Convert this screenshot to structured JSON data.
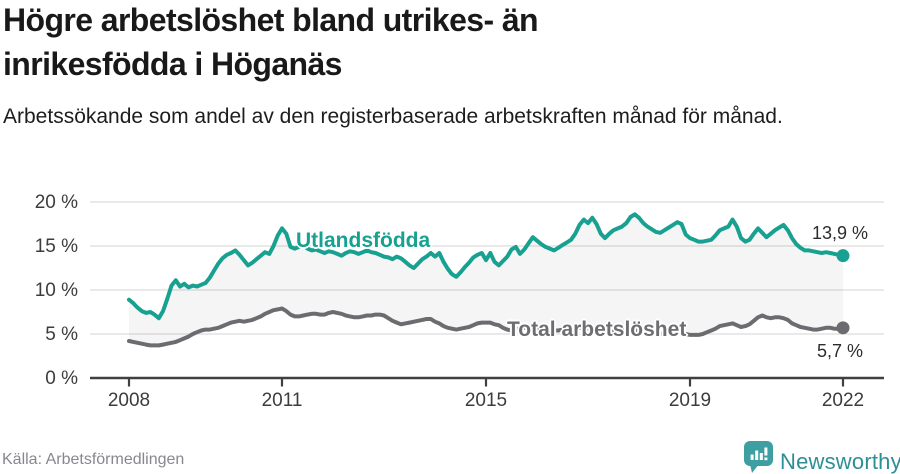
{
  "header": {
    "title": "Högre arbetslöshet bland utrikes- än inrikesfödda i Höganäs",
    "subtitle": "Arbetssökande som andel av den registerbaserade arbetskraften månad för månad."
  },
  "footer": {
    "source": "Källa: Arbetsförmedlingen",
    "brand": "Newsworthy"
  },
  "colors": {
    "series_foreign": "#18a191",
    "series_total": "#6c6c70",
    "grid": "#dcdcdc",
    "axis": "#404040",
    "band": "rgba(140,140,140,0.085)",
    "brand_icon": "#3d9fa2",
    "brand_text": "#2d8f96"
  },
  "chart_data": {
    "type": "line",
    "unit": "%",
    "frequency": "monthly",
    "x_start": "2008-01",
    "x_end": "2022-01",
    "ylim": [
      0,
      20
    ],
    "grid": "horizontal",
    "legend_position": "inline-labels",
    "yticks": [
      "0 %",
      "5 %",
      "10 %",
      "15 %",
      "20 %"
    ],
    "xticks": [
      "2008",
      "2011",
      "2015",
      "2019",
      "2022"
    ],
    "xtick_years": [
      2008,
      2011,
      2015,
      2019,
      2022
    ],
    "series": [
      {
        "name": "Utlandsfödda",
        "end_label": "13,9 %",
        "end_value": 13.9,
        "color": "#18a191",
        "values": [
          8.9,
          8.5,
          8.0,
          7.6,
          7.4,
          7.5,
          7.2,
          6.8,
          7.6,
          9.0,
          10.5,
          11.1,
          10.4,
          10.7,
          10.3,
          10.5,
          10.4,
          10.6,
          10.8,
          11.4,
          12.2,
          13.0,
          13.6,
          14.0,
          14.2,
          14.5,
          14.0,
          13.4,
          12.8,
          13.1,
          13.5,
          13.9,
          14.3,
          14.1,
          15.0,
          16.2,
          17.0,
          16.4,
          14.9,
          14.7,
          14.9,
          15.1,
          14.7,
          14.5,
          14.6,
          14.4,
          14.2,
          14.4,
          14.3,
          14.1,
          13.9,
          14.2,
          14.4,
          14.3,
          14.1,
          14.3,
          14.5,
          14.3,
          14.2,
          14.0,
          13.8,
          13.7,
          13.5,
          13.8,
          13.6,
          13.2,
          12.8,
          12.5,
          13.0,
          13.5,
          13.8,
          14.2,
          13.8,
          14.2,
          13.2,
          12.4,
          11.8,
          11.5,
          12.0,
          12.6,
          13.1,
          13.7,
          14.0,
          14.2,
          13.4,
          14.2,
          13.2,
          12.8,
          13.3,
          13.8,
          14.6,
          14.9,
          14.1,
          14.6,
          15.3,
          16.0,
          15.6,
          15.2,
          14.9,
          14.7,
          14.5,
          14.8,
          15.1,
          15.4,
          15.7,
          16.4,
          17.4,
          18.0,
          17.6,
          18.2,
          17.5,
          16.4,
          15.9,
          16.4,
          16.8,
          17.0,
          17.2,
          17.6,
          18.3,
          18.6,
          18.2,
          17.6,
          17.2,
          16.9,
          16.6,
          16.5,
          16.8,
          17.1,
          17.4,
          17.7,
          17.5,
          16.3,
          15.9,
          15.7,
          15.5,
          15.5,
          15.6,
          15.7,
          16.2,
          16.8,
          17.0,
          17.2,
          18.0,
          17.2,
          15.9,
          15.5,
          15.7,
          16.4,
          17.0,
          16.5,
          16.0,
          16.4,
          16.8,
          17.1,
          17.4,
          16.8,
          15.9,
          15.2,
          14.8,
          14.5,
          14.5,
          14.4,
          14.3,
          14.2,
          14.3,
          14.2,
          14.1,
          14.0,
          13.9
        ]
      },
      {
        "name": "Total arbetslöshet",
        "end_label": "5,7 %",
        "end_value": 5.7,
        "color": "#6c6c70",
        "values": [
          4.2,
          4.1,
          4.0,
          3.9,
          3.8,
          3.7,
          3.7,
          3.7,
          3.8,
          3.9,
          4.0,
          4.1,
          4.3,
          4.5,
          4.7,
          5.0,
          5.2,
          5.4,
          5.5,
          5.5,
          5.6,
          5.7,
          5.9,
          6.1,
          6.3,
          6.4,
          6.5,
          6.4,
          6.5,
          6.6,
          6.8,
          7.0,
          7.3,
          7.5,
          7.7,
          7.8,
          7.9,
          7.6,
          7.2,
          7.0,
          7.0,
          7.1,
          7.2,
          7.3,
          7.3,
          7.2,
          7.2,
          7.4,
          7.5,
          7.4,
          7.3,
          7.1,
          7.0,
          6.9,
          6.9,
          7.0,
          7.1,
          7.1,
          7.2,
          7.2,
          7.1,
          6.8,
          6.5,
          6.3,
          6.1,
          6.2,
          6.3,
          6.4,
          6.5,
          6.6,
          6.7,
          6.7,
          6.4,
          6.2,
          5.9,
          5.7,
          5.6,
          5.5,
          5.6,
          5.7,
          5.8,
          6.0,
          6.2,
          6.3,
          6.3,
          6.3,
          6.1,
          6.0,
          5.7,
          5.5,
          5.4,
          5.5,
          5.6,
          5.7,
          5.8,
          5.8,
          5.7,
          5.6,
          5.5,
          5.5,
          5.4,
          5.4,
          5.5,
          5.5,
          5.6,
          5.6,
          5.7,
          5.7,
          5.6,
          5.5,
          5.4,
          5.3,
          5.2,
          5.2,
          5.3,
          5.3,
          5.4,
          5.4,
          5.5,
          5.5,
          5.4,
          5.3,
          5.2,
          5.1,
          5.0,
          5.0,
          5.1,
          5.1,
          5.2,
          5.2,
          5.1,
          5.0,
          4.9,
          4.9,
          4.9,
          5.0,
          5.2,
          5.4,
          5.6,
          5.9,
          6.0,
          6.1,
          6.2,
          6.0,
          5.8,
          5.9,
          6.1,
          6.5,
          6.9,
          7.1,
          6.9,
          6.8,
          6.9,
          6.9,
          6.8,
          6.6,
          6.2,
          6.0,
          5.8,
          5.7,
          5.6,
          5.5,
          5.5,
          5.6,
          5.7,
          5.7,
          5.6,
          5.6,
          5.7
        ]
      }
    ]
  }
}
